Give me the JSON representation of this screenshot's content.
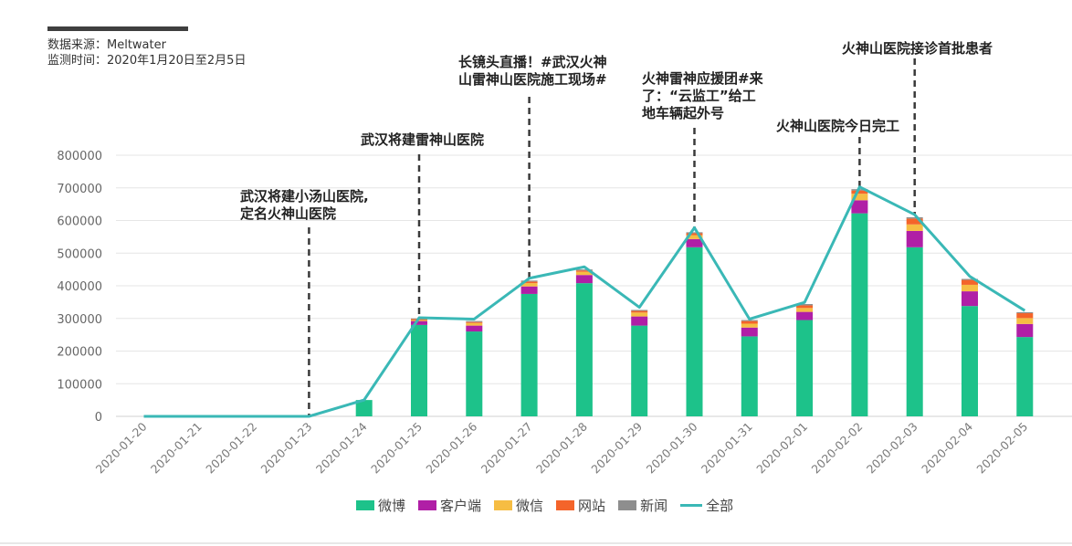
{
  "source": {
    "line1": "数据来源：Meltwater",
    "line2": "监测时间：2020年1月20日至2月5日"
  },
  "colors": {
    "weibo": "#1dc28a",
    "client": "#b01fa6",
    "wechat": "#f6bd43",
    "web": "#f4642a",
    "news": "#8e8e8e",
    "total": "#3ab8b6"
  },
  "annotations": [
    {
      "id": "a1",
      "lines": [
        "武汉将建小汤山医院,",
        "定名火神山医院"
      ],
      "date": "2020-01-23"
    },
    {
      "id": "a2",
      "lines": [
        "武汉将建雷神山医院"
      ],
      "date": "2020-01-25"
    },
    {
      "id": "a3",
      "lines": [
        "长镜头直播！#武汉火神",
        "山雷神山医院施工现场#"
      ],
      "date": "2020-01-27"
    },
    {
      "id": "a4",
      "lines": [
        "火神雷神应援团#来",
        "了：“云监工”给工",
        "地车辆起外号"
      ],
      "date": "2020-01-30"
    },
    {
      "id": "a5",
      "lines": [
        "火神山医院今日完工"
      ],
      "date": "2020-02-02"
    },
    {
      "id": "a6",
      "lines": [
        "火神山医院接诊首批患者"
      ],
      "date": "2020-02-03"
    }
  ],
  "chart_data": {
    "type": "bar",
    "stacked": true,
    "categories": [
      "2020-01-20",
      "2020-01-21",
      "2020-01-22",
      "2020-01-23",
      "2020-01-24",
      "2020-01-25",
      "2020-01-26",
      "2020-01-27",
      "2020-01-28",
      "2020-01-29",
      "2020-01-30",
      "2020-01-31",
      "2020-02-01",
      "2020-02-02",
      "2020-02-03",
      "2020-02-04",
      "2020-02-05"
    ],
    "ylim": [
      0,
      800000
    ],
    "yticks": [
      0,
      100000,
      200000,
      300000,
      400000,
      500000,
      600000,
      700000,
      800000
    ],
    "grid": true,
    "legend_position": "bottom",
    "series": [
      {
        "name": "微博",
        "key": "weibo",
        "values": [
          0,
          0,
          0,
          0,
          50000,
          280000,
          260000,
          375000,
          408000,
          278000,
          518000,
          245000,
          295000,
          622000,
          518000,
          338000,
          243000
        ]
      },
      {
        "name": "客户端",
        "key": "client",
        "values": [
          0,
          0,
          0,
          0,
          0,
          12000,
          18000,
          23000,
          25000,
          28000,
          25000,
          27000,
          25000,
          40000,
          50000,
          45000,
          40000
        ]
      },
      {
        "name": "微信",
        "key": "wechat",
        "values": [
          0,
          0,
          0,
          0,
          0,
          3000,
          8000,
          10000,
          10000,
          12000,
          12000,
          12000,
          12000,
          20000,
          20000,
          20000,
          18000
        ]
      },
      {
        "name": "网站",
        "key": "web",
        "values": [
          0,
          0,
          0,
          0,
          0,
          3000,
          3000,
          5000,
          4000,
          5000,
          6000,
          8000,
          8000,
          10000,
          18000,
          15000,
          15000
        ]
      },
      {
        "name": "新闻",
        "key": "news",
        "values": [
          0,
          0,
          0,
          0,
          0,
          2000,
          3000,
          3000,
          3000,
          3000,
          3000,
          3000,
          4000,
          4000,
          4000,
          3000,
          3000
        ]
      },
      {
        "name": "全部",
        "key": "total",
        "type": "line",
        "values": [
          0,
          0,
          0,
          0,
          50000,
          302000,
          298000,
          423000,
          458000,
          334000,
          578000,
          298000,
          349000,
          703000,
          618000,
          429000,
          324000
        ]
      }
    ]
  }
}
